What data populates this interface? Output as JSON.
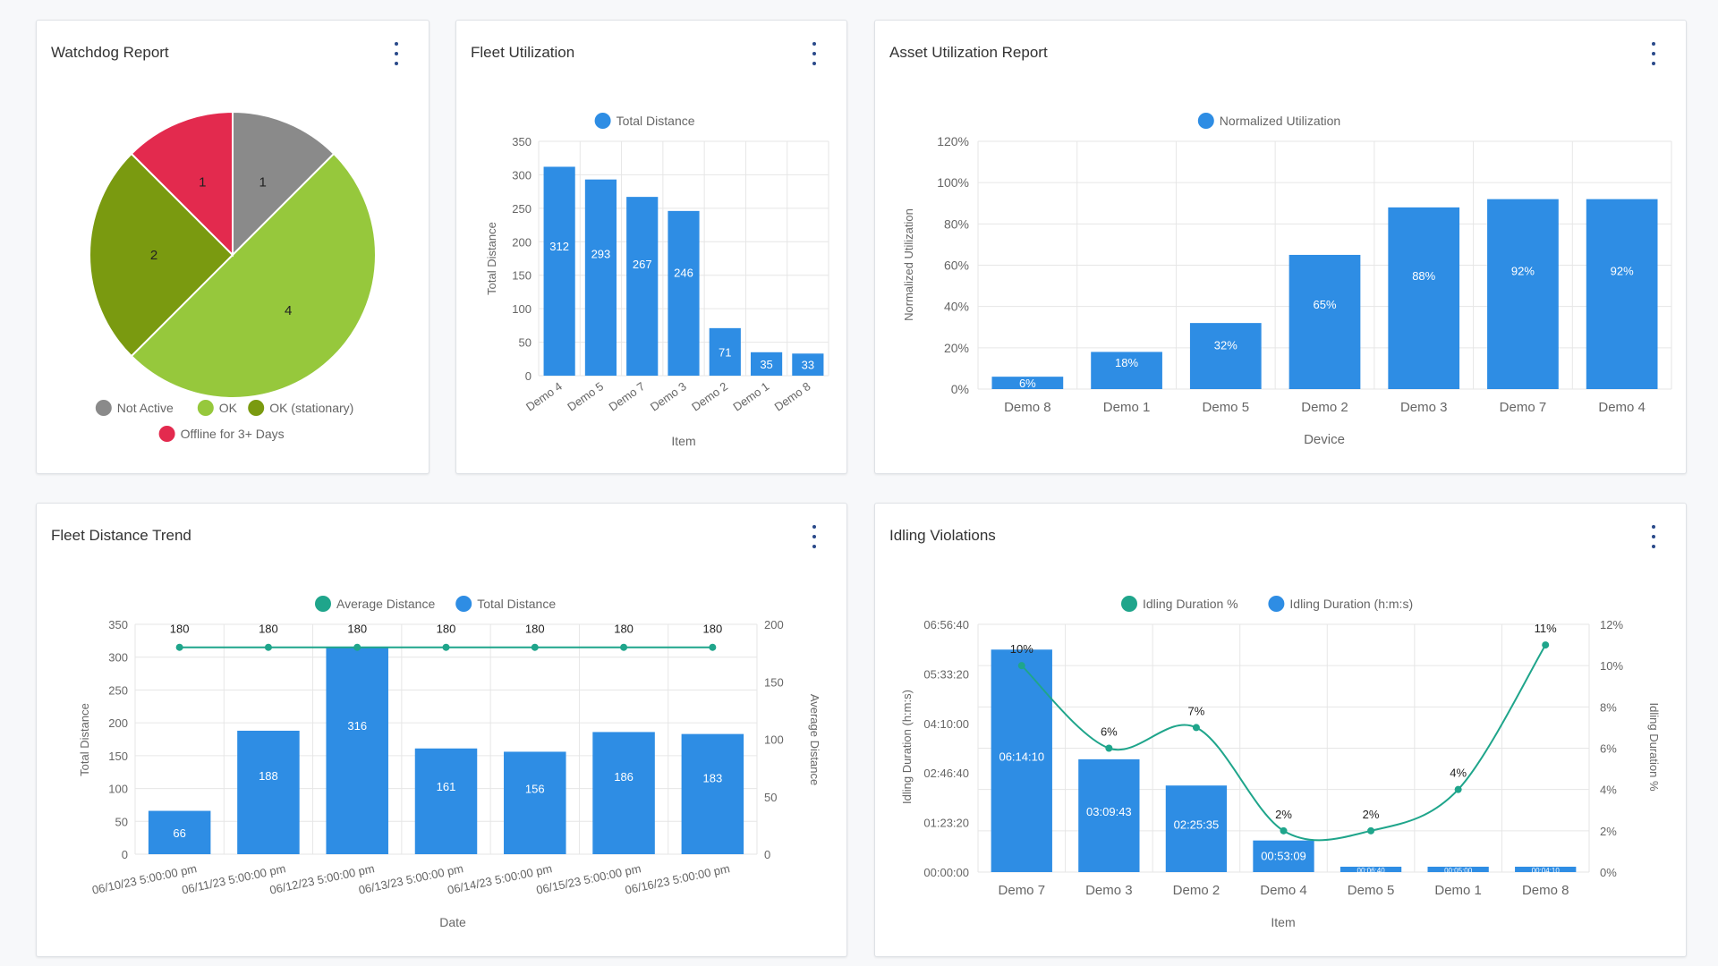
{
  "colors": {
    "blue": "#2e8de4",
    "teal": "#1fa58b",
    "grey": "#8a8a8a",
    "green_light": "#96c83c",
    "green_dark": "#7a9a10",
    "red": "#e32a4e",
    "grid": "#e6e6e6"
  },
  "watchdog": {
    "title": "Watchdog Report",
    "menu_icon": "kebab-vertical-icon",
    "chart_data": {
      "type": "pie",
      "slices": [
        {
          "label": "Not Active",
          "value": 1,
          "color": "#8a8a8a"
        },
        {
          "label": "OK",
          "value": 4,
          "color": "#96c83c"
        },
        {
          "label": "OK (stationary)",
          "value": 2,
          "color": "#7a9a10"
        },
        {
          "label": "Offline for 3+ Days",
          "value": 1,
          "color": "#e32a4e"
        }
      ],
      "legend": [
        "Not Active",
        "OK",
        "OK (stationary)",
        "Offline for 3+ Days"
      ],
      "legend_position": "bottom"
    }
  },
  "fleet_util": {
    "title": "Fleet Utilization",
    "menu_icon": "kebab-vertical-icon",
    "chart_data": {
      "type": "bar",
      "categories": [
        "Demo 4",
        "Demo 5",
        "Demo 7",
        "Demo 3",
        "Demo 2",
        "Demo 1",
        "Demo 8"
      ],
      "series": [
        {
          "name": "Total Distance",
          "values": [
            312,
            293,
            267,
            246,
            71,
            35,
            33
          ]
        }
      ],
      "data_labels": [
        "312",
        "293",
        "267",
        "246",
        "71",
        "35",
        "33"
      ],
      "xlabel": "Item",
      "ylabel": "Total Distance",
      "ylim": [
        0,
        350
      ],
      "yticks": [
        "0",
        "50",
        "100",
        "150",
        "200",
        "250",
        "300",
        "350"
      ],
      "grid": true,
      "legend_position": "top"
    }
  },
  "asset_util": {
    "title": "Asset Utilization Report",
    "menu_icon": "kebab-vertical-icon",
    "chart_data": {
      "type": "bar",
      "categories": [
        "Demo 8",
        "Demo 1",
        "Demo 5",
        "Demo 2",
        "Demo 3",
        "Demo 7",
        "Demo 4"
      ],
      "series": [
        {
          "name": "Normalized Utilization",
          "values": [
            6,
            18,
            32,
            65,
            88,
            92,
            92
          ]
        }
      ],
      "data_labels": [
        "6%",
        "18%",
        "32%",
        "65%",
        "88%",
        "92%",
        "92%"
      ],
      "xlabel": "Device",
      "ylabel": "Normalized Utilization",
      "ylim": [
        0,
        120
      ],
      "yticks": [
        "0%",
        "20%",
        "40%",
        "60%",
        "80%",
        "100%",
        "120%"
      ],
      "grid": true,
      "legend_position": "top"
    }
  },
  "fleet_trend": {
    "title": "Fleet Distance Trend",
    "menu_icon": "kebab-vertical-icon",
    "chart_data": {
      "type": "bar",
      "categories": [
        "06/10/23 5:00:00 pm",
        "06/11/23 5:00:00 pm",
        "06/12/23 5:00:00 pm",
        "06/13/23 5:00:00 pm",
        "06/14/23 5:00:00 pm",
        "06/15/23 5:00:00 pm",
        "06/16/23 5:00:00 pm"
      ],
      "series": [
        {
          "name": "Average Distance",
          "type": "line",
          "axis": "right",
          "values": [
            180,
            180,
            180,
            180,
            180,
            180,
            180
          ],
          "labels": [
            "180",
            "180",
            "180",
            "180",
            "180",
            "180",
            "180"
          ]
        },
        {
          "name": "Total Distance",
          "type": "bar",
          "axis": "left",
          "values": [
            66,
            188,
            316,
            161,
            156,
            186,
            183
          ],
          "labels": [
            "66",
            "188",
            "316",
            "161",
            "156",
            "186",
            "183"
          ]
        }
      ],
      "xlabel": "Date",
      "ylabel": "Total Distance",
      "ylabel_right": "Average Distance",
      "ylim": [
        0,
        350
      ],
      "ylim_right": [
        0,
        200
      ],
      "yticks": [
        "0",
        "50",
        "100",
        "150",
        "200",
        "250",
        "300",
        "350"
      ],
      "yticks_right": [
        "0",
        "50",
        "100",
        "150",
        "200"
      ],
      "grid": true,
      "legend_position": "top"
    }
  },
  "idling": {
    "title": "Idling Violations",
    "menu_icon": "kebab-vertical-icon",
    "chart_data": {
      "type": "bar",
      "categories": [
        "Demo 7",
        "Demo 3",
        "Demo 2",
        "Demo 4",
        "Demo 5",
        "Demo 1",
        "Demo 8"
      ],
      "series": [
        {
          "name": "Idling Duration %",
          "type": "line",
          "axis": "right",
          "values": [
            10,
            6,
            7,
            2,
            2,
            4,
            11
          ],
          "labels": [
            "10%",
            "6%",
            "7%",
            "2%",
            "2%",
            "4%",
            "11%"
          ]
        },
        {
          "name": "Idling Duration (h:m:s)",
          "type": "bar",
          "axis": "left",
          "values_seconds": [
            22450,
            11383,
            8735,
            3189,
            400,
            300,
            250
          ],
          "labels": [
            "06:14:10",
            "03:09:43",
            "02:25:35",
            "00:53:09",
            "00:06:40",
            "00:05:00",
            "00:04:10"
          ]
        }
      ],
      "xlabel": "Item",
      "ylabel": "Idling Duration (h:m:s)",
      "ylabel_right": "Idling Duration %",
      "ylim_seconds": [
        0,
        25000
      ],
      "ylim_right": [
        0,
        12
      ],
      "yticks": [
        "00:00:00",
        "01:23:20",
        "02:46:40",
        "04:10:00",
        "05:33:20",
        "06:56:40"
      ],
      "yticks_right": [
        "0%",
        "2%",
        "4%",
        "6%",
        "8%",
        "10%",
        "12%"
      ],
      "grid": true,
      "legend_position": "top"
    }
  }
}
